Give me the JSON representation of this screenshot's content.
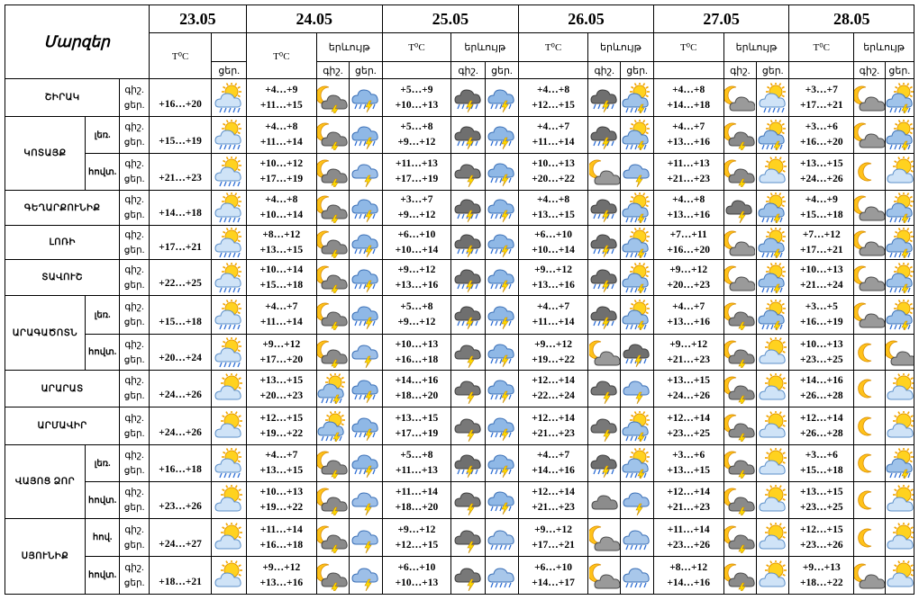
{
  "header": {
    "region_title": "Մարզեր",
    "temp_label": "T⁰C",
    "phenomena_label": "երևույթ",
    "day_label": "ցեր.",
    "night_label": "գիշ.",
    "dates": [
      "23.05",
      "24.05",
      "25.05",
      "26.05",
      "27.05",
      "28.05"
    ]
  },
  "rows": [
    {
      "region": "ՇԻՐԱԿ",
      "sub": "",
      "night": "գիշ.",
      "day": "ցեր.",
      "d1": {
        "temp": "+16…+20",
        "icon": "sun-cloud-rain-icon"
      },
      "days": [
        {
          "t_night": "+4…+9",
          "t_day": "+11…+15",
          "icon_n": "moon-cloud-storm-icon",
          "icon_d": "cloud-rain-storm-icon"
        },
        {
          "t_night": "+5…+9",
          "t_day": "+10…+13",
          "icon_n": "storm-cloud-rain-icon",
          "icon_d": "cloud-rain-storm-icon"
        },
        {
          "t_night": "+4…+8",
          "t_day": "+12…+15",
          "icon_n": "storm-cloud-rain-icon",
          "icon_d": "sun-cloud-storm-icon"
        },
        {
          "t_night": "+4…+8",
          "t_day": "+14…+18",
          "icon_n": "moon-cloud-icon",
          "icon_d": "sun-cloud-rain-icon"
        },
        {
          "t_night": "+3…+7",
          "t_day": "+17…+21",
          "icon_n": "moon-cloud-icon",
          "icon_d": "sun-cloud-storm-icon"
        }
      ]
    },
    {
      "region": "ԿՈՏԱՅՔ",
      "sub": "լեռ.",
      "night": "գիշ.",
      "day": "ցեր.",
      "d1": {
        "temp": "+15…+19",
        "icon": "sun-cloud-rain-icon"
      },
      "days": [
        {
          "t_night": "+4…+8",
          "t_day": "+11…+14",
          "icon_n": "moon-cloud-storm-icon",
          "icon_d": "cloud-rain-storm-icon"
        },
        {
          "t_night": "+5…+8",
          "t_day": "+9…+12",
          "icon_n": "storm-cloud-rain-icon",
          "icon_d": "cloud-rain-storm-icon"
        },
        {
          "t_night": "+4…+7",
          "t_day": "+11…+14",
          "icon_n": "storm-cloud-rain-icon",
          "icon_d": "sun-cloud-storm-icon"
        },
        {
          "t_night": "+4…+7",
          "t_day": "+13…+16",
          "icon_n": "moon-cloud-storm-icon",
          "icon_d": "sun-cloud-storm-icon"
        },
        {
          "t_night": "+3…+6",
          "t_day": "+16…+20",
          "icon_n": "moon-cloud-icon",
          "icon_d": "sun-cloud-storm-icon"
        }
      ]
    },
    {
      "region": "",
      "sub": "հովտ.",
      "night": "գիշ.",
      "day": "ցեր.",
      "d1": {
        "temp": "+21…+23",
        "icon": "sun-cloud-rain-icon"
      },
      "days": [
        {
          "t_night": "+10…+12",
          "t_day": "+17…+19",
          "icon_n": "moon-cloud-storm-icon",
          "icon_d": "cloud-storm-icon"
        },
        {
          "t_night": "+11…+13",
          "t_day": "+17…+19",
          "icon_n": "storm-cloud-icon",
          "icon_d": "cloud-rain-storm-icon"
        },
        {
          "t_night": "+10…+13",
          "t_day": "+20…+22",
          "icon_n": "moon-cloud-icon",
          "icon_d": "cloud-storm-icon"
        },
        {
          "t_night": "+11…+13",
          "t_day": "+21…+23",
          "icon_n": "moon-cloud-storm-icon",
          "icon_d": "sun-cloud-icon"
        },
        {
          "t_night": "+13…+15",
          "t_day": "+24…+26",
          "icon_n": "moon-icon",
          "icon_d": "sun-cloud-icon"
        }
      ]
    },
    {
      "region": "ԳԵՂԱՐՔՈՒՆԻՔ",
      "sub": "",
      "night": "գիշ.",
      "day": "ցեր.",
      "d1": {
        "temp": "+14…+18",
        "icon": "sun-cloud-rain-icon"
      },
      "days": [
        {
          "t_night": "+4…+8",
          "t_day": "+10…+14",
          "icon_n": "moon-cloud-storm-icon",
          "icon_d": "cloud-rain-storm-icon"
        },
        {
          "t_night": "+3…+7",
          "t_day": "+9…+12",
          "icon_n": "storm-cloud-rain-icon",
          "icon_d": "cloud-rain-storm-icon"
        },
        {
          "t_night": "+4…+8",
          "t_day": "+13…+15",
          "icon_n": "storm-cloud-rain-icon",
          "icon_d": "sun-cloud-storm-icon"
        },
        {
          "t_night": "+4…+8",
          "t_day": "+13…+16",
          "icon_n": "storm-cloud-icon",
          "icon_d": "sun-cloud-storm-icon"
        },
        {
          "t_night": "+4…+9",
          "t_day": "+15…+18",
          "icon_n": "moon-cloud-icon",
          "icon_d": "sun-cloud-storm-icon"
        }
      ]
    },
    {
      "region": "ԼՈՌԻ",
      "sub": "",
      "night": "գիշ.",
      "day": "ցեր.",
      "d1": {
        "temp": "+17…+21",
        "icon": "sun-cloud-rain-icon"
      },
      "days": [
        {
          "t_night": "+8…+12",
          "t_day": "+13…+15",
          "icon_n": "moon-cloud-storm-icon",
          "icon_d": "cloud-rain-storm-icon"
        },
        {
          "t_night": "+6…+10",
          "t_day": "+10…+14",
          "icon_n": "storm-cloud-rain-icon",
          "icon_d": "cloud-rain-storm-icon"
        },
        {
          "t_night": "+6…+10",
          "t_day": "+10…+14",
          "icon_n": "storm-cloud-rain-icon",
          "icon_d": "sun-cloud-storm-icon"
        },
        {
          "t_night": "+7…+11",
          "t_day": "+16…+20",
          "icon_n": "moon-cloud-icon",
          "icon_d": "sun-cloud-storm-icon"
        },
        {
          "t_night": "+7…+12",
          "t_day": "+17…+21",
          "icon_n": "moon-cloud-icon",
          "icon_d": "sun-cloud-storm-icon"
        }
      ]
    },
    {
      "region": "ՏԱՎՈՒՇ",
      "sub": "",
      "night": "գիշ.",
      "day": "ցեր.",
      "d1": {
        "temp": "+22…+25",
        "icon": "sun-cloud-rain-icon"
      },
      "days": [
        {
          "t_night": "+10…+14",
          "t_day": "+15…+18",
          "icon_n": "moon-cloud-storm-icon",
          "icon_d": "cloud-rain-storm-icon"
        },
        {
          "t_night": "+9…+12",
          "t_day": "+13…+16",
          "icon_n": "storm-cloud-rain-icon",
          "icon_d": "cloud-rain-storm-icon"
        },
        {
          "t_night": "+9…+12",
          "t_day": "+13…+16",
          "icon_n": "storm-cloud-rain-icon",
          "icon_d": "sun-cloud-storm-icon"
        },
        {
          "t_night": "+9…+12",
          "t_day": "+20…+23",
          "icon_n": "moon-cloud-icon",
          "icon_d": "sun-cloud-storm-icon"
        },
        {
          "t_night": "+10…+13",
          "t_day": "+21…+24",
          "icon_n": "moon-cloud-icon",
          "icon_d": "sun-cloud-storm-icon"
        }
      ]
    },
    {
      "region": "ԱՐԱԳԱԾՈՏՆ",
      "sub": "լեռ.",
      "night": "գիշ.",
      "day": "ցեր.",
      "d1": {
        "temp": "+15…+18",
        "icon": "sun-cloud-rain-icon"
      },
      "days": [
        {
          "t_night": "+4…+7",
          "t_day": "+11…+14",
          "icon_n": "moon-cloud-storm-icon",
          "icon_d": "cloud-rain-storm-icon"
        },
        {
          "t_night": "+5…+8",
          "t_day": "+9…+12",
          "icon_n": "storm-cloud-rain-icon",
          "icon_d": "cloud-rain-storm-icon"
        },
        {
          "t_night": "+4…+7",
          "t_day": "+11…+14",
          "icon_n": "storm-cloud-rain-icon",
          "icon_d": "sun-cloud-storm-icon"
        },
        {
          "t_night": "+4…+7",
          "t_day": "+13…+16",
          "icon_n": "moon-cloud-storm-icon",
          "icon_d": "sun-cloud-storm-icon"
        },
        {
          "t_night": "+3…+5",
          "t_day": "+16…+19",
          "icon_n": "moon-cloud-icon",
          "icon_d": "sun-cloud-storm-icon"
        }
      ]
    },
    {
      "region": "",
      "sub": "հովտ.",
      "night": "գիշ.",
      "day": "ցեր.",
      "d1": {
        "temp": "+20…+24",
        "icon": "sun-cloud-rain-icon"
      },
      "days": [
        {
          "t_night": "+9…+12",
          "t_day": "+17…+20",
          "icon_n": "moon-cloud-storm-icon",
          "icon_d": "cloud-storm-icon"
        },
        {
          "t_night": "+10…+13",
          "t_day": "+16…+18",
          "icon_n": "storm-cloud-icon",
          "icon_d": "cloud-rain-storm-icon"
        },
        {
          "t_night": "+9…+12",
          "t_day": "+19…+22",
          "icon_n": "moon-cloud-icon",
          "icon_d": "storm-cloud-rain-icon"
        },
        {
          "t_night": "+9…+12",
          "t_day": "+21…+23",
          "icon_n": "moon-cloud-storm-icon",
          "icon_d": "sun-cloud-icon"
        },
        {
          "t_night": "+10…+13",
          "t_day": "+23…+25",
          "icon_n": "moon-icon",
          "icon_d": "moon-cloud-icon"
        }
      ]
    },
    {
      "region": "ԱՐԱՐԱՏ",
      "sub": "",
      "night": "գիշ.",
      "day": "ցեր.",
      "d1": {
        "temp": "+24…+26",
        "icon": "sun-cloud-icon"
      },
      "days": [
        {
          "t_night": "+13…+15",
          "t_day": "+20…+23",
          "icon_n": "sun-cloud-storm-icon",
          "icon_d": "cloud-rain-storm-icon"
        },
        {
          "t_night": "+14…+16",
          "t_day": "+18…+20",
          "icon_n": "storm-cloud-icon",
          "icon_d": "cloud-rain-storm-icon"
        },
        {
          "t_night": "+12…+14",
          "t_day": "+22…+24",
          "icon_n": "storm-cloud-icon",
          "icon_d": "cloud-storm-icon"
        },
        {
          "t_night": "+13…+15",
          "t_day": "+24…+26",
          "icon_n": "moon-cloud-storm-icon",
          "icon_d": "sun-cloud-icon"
        },
        {
          "t_night": "+14…+16",
          "t_day": "+26…+28",
          "icon_n": "moon-icon",
          "icon_d": "sun-cloud-icon"
        }
      ]
    },
    {
      "region": "ԱՐՄԱՎԻՐ",
      "sub": "",
      "night": "գիշ.",
      "day": "ցեր.",
      "d1": {
        "temp": "+24…+26",
        "icon": "sun-cloud-icon"
      },
      "days": [
        {
          "t_night": "+12…+15",
          "t_day": "+19…+22",
          "icon_n": "sun-cloud-storm-icon",
          "icon_d": "cloud-rain-storm-icon"
        },
        {
          "t_night": "+13…+15",
          "t_day": "+17…+19",
          "icon_n": "storm-cloud-icon",
          "icon_d": "cloud-rain-storm-icon"
        },
        {
          "t_night": "+12…+14",
          "t_day": "+21…+23",
          "icon_n": "storm-cloud-icon",
          "icon_d": "sun-cloud-storm-icon"
        },
        {
          "t_night": "+12…+14",
          "t_day": "+23…+25",
          "icon_n": "moon-cloud-storm-icon",
          "icon_d": "sun-cloud-icon"
        },
        {
          "t_night": "+12…+14",
          "t_day": "+26…+28",
          "icon_n": "moon-icon",
          "icon_d": "sun-cloud-icon"
        }
      ]
    },
    {
      "region": "ՎԱՅՈՑ ՁՈՐ",
      "sub": "լեռ.",
      "night": "գիշ.",
      "day": "ցեր.",
      "d1": {
        "temp": "+16…+18",
        "icon": "sun-cloud-rain-icon"
      },
      "days": [
        {
          "t_night": "+4…+7",
          "t_day": "+13…+15",
          "icon_n": "moon-cloud-storm-icon",
          "icon_d": "cloud-rain-storm-icon"
        },
        {
          "t_night": "+5…+8",
          "t_day": "+11…+13",
          "icon_n": "storm-cloud-rain-icon",
          "icon_d": "cloud-rain-storm-icon"
        },
        {
          "t_night": "+4…+7",
          "t_day": "+14…+16",
          "icon_n": "storm-cloud-rain-icon",
          "icon_d": "sun-cloud-storm-icon"
        },
        {
          "t_night": "+3…+6",
          "t_day": "+13…+15",
          "icon_n": "moon-cloud-storm-icon",
          "icon_d": "sun-cloud-icon"
        },
        {
          "t_night": "+3…+6",
          "t_day": "+15…+18",
          "icon_n": "moon-icon",
          "icon_d": "sun-cloud-storm-icon"
        }
      ]
    },
    {
      "region": "",
      "sub": "հովտ.",
      "night": "գիշ.",
      "day": "ցեր.",
      "d1": {
        "temp": "+23…+26",
        "icon": "sun-cloud-icon"
      },
      "days": [
        {
          "t_night": "+10…+13",
          "t_day": "+19…+22",
          "icon_n": "moon-cloud-storm-icon",
          "icon_d": "cloud-storm-icon"
        },
        {
          "t_night": "+11…+14",
          "t_day": "+18…+20",
          "icon_n": "storm-cloud-icon",
          "icon_d": "cloud-rain-storm-icon"
        },
        {
          "t_night": "+12…+14",
          "t_day": "+21…+23",
          "icon_n": "cloud-icon",
          "icon_d": "cloud-storm-icon"
        },
        {
          "t_night": "+12…+14",
          "t_day": "+21…+23",
          "icon_n": "moon-cloud-storm-icon",
          "icon_d": "sun-cloud-icon"
        },
        {
          "t_night": "+13…+15",
          "t_day": "+23…+25",
          "icon_n": "moon-icon",
          "icon_d": "sun-cloud-icon"
        }
      ]
    },
    {
      "region": "ՍՅՈՒՆԻՔ",
      "sub": "հով.",
      "night": "գիշ.",
      "day": "ցեր.",
      "d1": {
        "temp": "+24…+27",
        "icon": "sun-cloud-icon"
      },
      "days": [
        {
          "t_night": "+11…+14",
          "t_day": "+16…+18",
          "icon_n": "moon-cloud-storm-icon",
          "icon_d": "cloud-storm-icon"
        },
        {
          "t_night": "+9…+12",
          "t_day": "+12…+15",
          "icon_n": "storm-cloud-icon",
          "icon_d": "cloud-rain-icon"
        },
        {
          "t_night": "+9…+12",
          "t_day": "+17…+21",
          "icon_n": "moon-cloud-icon",
          "icon_d": "cloud-rain-icon"
        },
        {
          "t_night": "+11…+14",
          "t_day": "+23…+26",
          "icon_n": "moon-cloud-storm-icon",
          "icon_d": "sun-cloud-icon"
        },
        {
          "t_night": "+12…+15",
          "t_day": "+23…+26",
          "icon_n": "moon-icon",
          "icon_d": "sun-cloud-icon"
        }
      ]
    },
    {
      "region": "",
      "sub": "հովտ.",
      "night": "գիշ.",
      "day": "ցեր.",
      "d1": {
        "temp": "+18…+21",
        "icon": "sun-cloud-icon"
      },
      "days": [
        {
          "t_night": "+9…+12",
          "t_day": "+13…+16",
          "icon_n": "moon-cloud-storm-icon",
          "icon_d": "cloud-storm-icon"
        },
        {
          "t_night": "+6…+10",
          "t_day": "+10…+13",
          "icon_n": "storm-cloud-icon",
          "icon_d": "cloud-rain-icon"
        },
        {
          "t_night": "+6…+10",
          "t_day": "+14…+17",
          "icon_n": "moon-cloud-icon",
          "icon_d": "cloud-rain-icon"
        },
        {
          "t_night": "+8…+12",
          "t_day": "+14…+16",
          "icon_n": "moon-cloud-storm-icon",
          "icon_d": "sun-cloud-icon"
        },
        {
          "t_night": "+9…+13",
          "t_day": "+18…+22",
          "icon_n": "moon-cloud-icon",
          "icon_d": "sun-cloud-icon"
        }
      ]
    }
  ]
}
